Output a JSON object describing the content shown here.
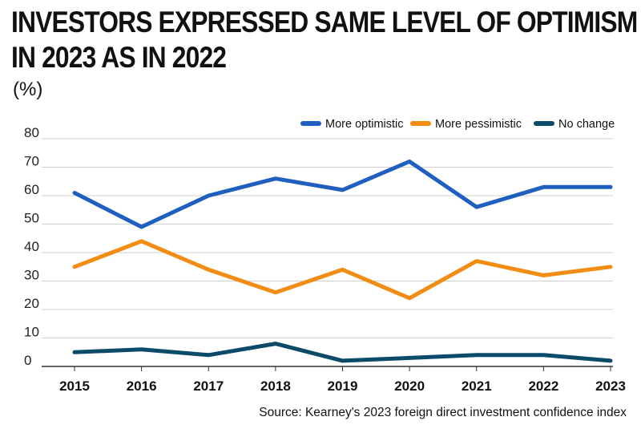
{
  "chart_data": {
    "type": "line",
    "title": "INVESTORS EXPRESSED SAME LEVEL OF OPTIMISM",
    "title_line2": "IN 2023 AS IN 2022",
    "ylabel": "(%)",
    "xlabel": "",
    "x": [
      "2015",
      "2016",
      "2017",
      "2018",
      "2019",
      "2020",
      "2021",
      "2022",
      "2023"
    ],
    "ylim": [
      0,
      80
    ],
    "yticks": [
      "0",
      "10",
      "20",
      "30",
      "40",
      "50",
      "60",
      "70",
      "80"
    ],
    "grid": true,
    "legend_position": "top-right",
    "series": [
      {
        "name": "More optimistic",
        "color": "#1f5fbf",
        "values": [
          61,
          49,
          60,
          66,
          62,
          72,
          56,
          63,
          63
        ]
      },
      {
        "name": "More pessimistic",
        "color": "#f28c13",
        "values": [
          35,
          44,
          34,
          26,
          34,
          24,
          37,
          32,
          35
        ]
      },
      {
        "name": "No change",
        "color": "#0c4a6a",
        "values": [
          5,
          6,
          4,
          8,
          2,
          3,
          4,
          4,
          2
        ]
      }
    ],
    "source": "Source: Kearney's 2023 foreign direct investment confidence index"
  }
}
